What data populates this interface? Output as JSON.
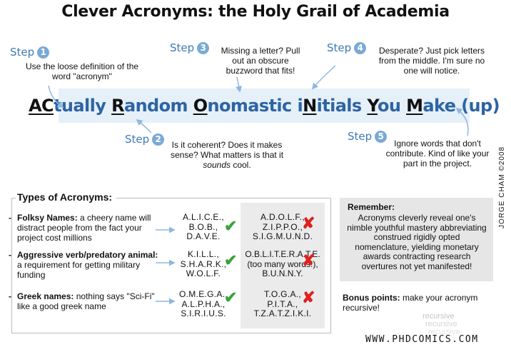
{
  "title": "Clever Acronyms: the Holy Grail of Academia",
  "step_word": "Step",
  "steps": [
    {
      "num": "1",
      "text": "Use the loose definition of the word \"acronym\""
    },
    {
      "num": "2",
      "text_a": "Is it coherent? Does it makes sense? What matters is that it ",
      "text_em": "sounds",
      "text_b": " cool."
    },
    {
      "num": "3",
      "text": "Missing a letter? Pull out an obscure buzzword that fits!"
    },
    {
      "num": "4",
      "text": "Desperate? Just pick letters from the middle. I'm sure no one will notice."
    },
    {
      "num": "5",
      "text": "Ignore words that don't contribute. Kind of like your part in the project."
    }
  ],
  "banner": [
    {
      "t": "AC",
      "cap": true
    },
    {
      "t": "tually ",
      "cap": false
    },
    {
      "t": "R",
      "cap": true
    },
    {
      "t": "andom ",
      "cap": false
    },
    {
      "t": "O",
      "cap": true
    },
    {
      "t": "nomastic i",
      "cap": false
    },
    {
      "t": "N",
      "cap": true
    },
    {
      "t": "itials ",
      "cap": false
    },
    {
      "t": "Y",
      "cap": true
    },
    {
      "t": "ou ",
      "cap": false
    },
    {
      "t": "M",
      "cap": true
    },
    {
      "t": "ake (up)",
      "cap": false
    }
  ],
  "types": {
    "title": "Types of Acronyms:",
    "rows": [
      {
        "name": "Folksy Names:",
        "desc": " a cheery name will distract people from the fact your project cost millions",
        "good": [
          "A.L.I.C.E.,",
          "B.O.B.,",
          "D.A.V.E."
        ],
        "bad": [
          "A.D.O.L.F.,",
          "Z.I.P.P.O.,",
          "S.I.G.M.U.N.D."
        ]
      },
      {
        "name": "Aggressive verb/predatory animal:",
        "desc": " a requirement for getting military funding",
        "good": [
          "K.I.L.L.,",
          "S.H.A.R.K.,",
          "W.O.L.F."
        ],
        "bad": [
          "O.B.L.I.T.E.R.A.T.E.",
          "(too many words!),",
          "B.U.N.N.Y."
        ]
      },
      {
        "name": "Greek names:",
        "desc": " nothing says \"Sci-Fi\" like a good greek name",
        "good": [
          "O.M.E.G.A.,",
          "A.L.P.H.A.,",
          "S.I.R.I.U.S."
        ],
        "bad": [
          "T.O.G.A.,",
          "P.I.T.A.,",
          "T.Z.A.T.Z.I.K.I."
        ]
      }
    ]
  },
  "remember": {
    "title": "Remember:",
    "text": "Acronyms cleverly reveal one's nimble youthful mastery abbreviating construed rigidly opted nomenclature, yielding monetary awards contracting research overtures not yet manifested!"
  },
  "bonus": {
    "label": "Bonus points:",
    "text": " make your acronym recursive!",
    "echo": [
      "recursive",
      "recursive",
      "recursive"
    ]
  },
  "credit": "JORGE CHAM ©2008",
  "website": "WWW.PHDCOMICS.COM",
  "colors": {
    "step_blue": "#3d7ab8",
    "banner_bg": "#e6f0f8",
    "check": "#3aa33a",
    "cross": "#e02020"
  }
}
